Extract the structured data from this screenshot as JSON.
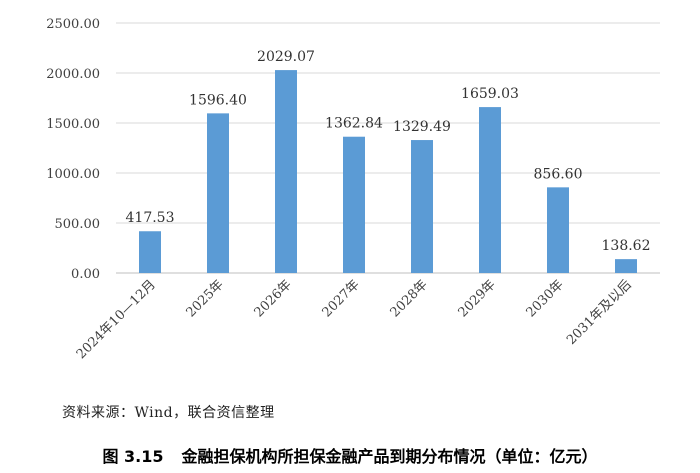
{
  "chart_data": {
    "type": "bar",
    "title": "",
    "xlabel": "",
    "ylabel": "",
    "categories": [
      "2024年10—12月",
      "2025年",
      "2026年",
      "2027年",
      "2028年",
      "2029年",
      "2030年",
      "2031年及以后"
    ],
    "values": [
      417.53,
      1596.4,
      2029.07,
      1362.84,
      1329.49,
      1659.03,
      856.6,
      138.62
    ],
    "value_labels": [
      "417.53",
      "1596.40",
      "2029.07",
      "1362.84",
      "1329.49",
      "1659.03",
      "856.60",
      "138.62"
    ],
    "ylim": [
      0,
      2500
    ],
    "yticks": [
      0,
      500,
      1000,
      1500,
      2000,
      2500
    ],
    "ytick_labels": [
      "0.00",
      "500.00",
      "1000.00",
      "1500.00",
      "2000.00",
      "2500.00"
    ],
    "grid": true,
    "legend": "none",
    "bar_color": "#5B9BD5",
    "grid_color": "#D9D9D9",
    "axis_color": "#BFBFBF"
  },
  "source_note": "资料来源：Wind，联合资信整理",
  "caption": {
    "figure_number": "图 3.15",
    "text": "金融担保机构所担保金融产品到期分布情况（单位：亿元）"
  }
}
